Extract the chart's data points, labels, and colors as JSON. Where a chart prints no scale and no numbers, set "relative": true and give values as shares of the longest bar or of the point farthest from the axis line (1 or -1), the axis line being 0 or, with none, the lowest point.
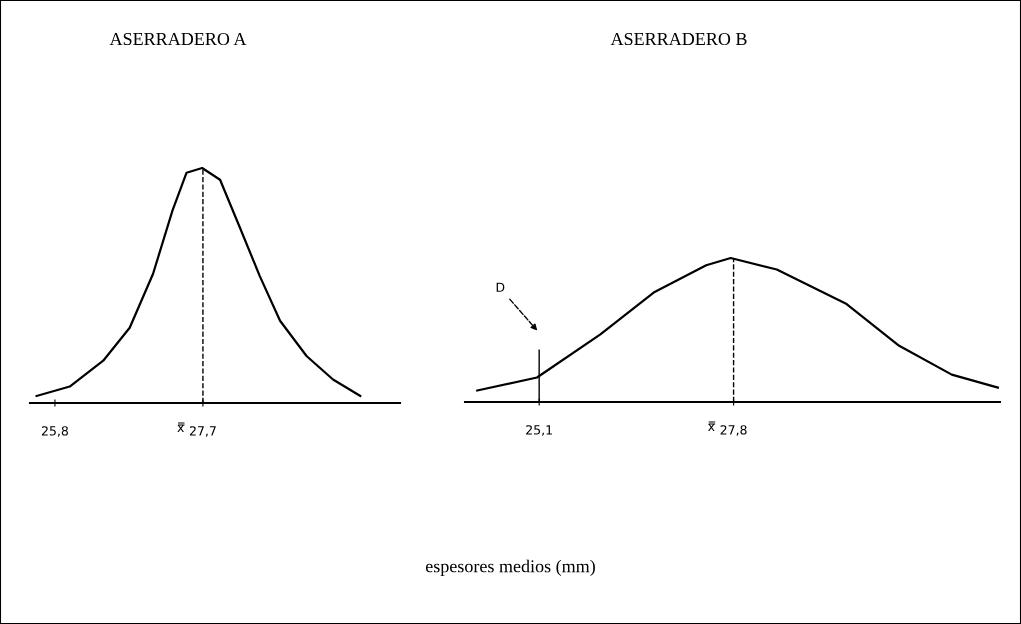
{
  "chart_data": [
    {
      "type": "line",
      "title": "ASERRADERO A",
      "relative": true,
      "xlabel": "espesores medios (mm)",
      "xlim": [
        25.48,
        30.23
      ],
      "xticks": [
        {
          "value": 25.8,
          "label": "25,8"
        },
        {
          "value": 27.7,
          "label": "27,7"
        }
      ],
      "series": [
        {
          "color": "#000000",
          "x": [
            25.565,
            25.99,
            26.42,
            26.76,
            27.06,
            27.31,
            27.49,
            27.69,
            27.92,
            28.17,
            28.43,
            28.69,
            29.03,
            29.37,
            29.72
          ],
          "values": [
            0.03,
            0.07,
            0.18,
            0.32,
            0.55,
            0.82,
            0.98,
            1,
            0.95,
            0.75,
            0.54,
            0.35,
            0.2,
            0.1,
            0.03
          ]
        }
      ],
      "ref_lines": [
        {
          "axis": "x",
          "value": 27.7,
          "label": "x̿",
          "line_style": "dashed",
          "color": "#000000"
        }
      ],
      "grid": false,
      "legend": false,
      "marker": "none",
      "line_style": "solid"
    },
    {
      "type": "line",
      "title": "ASERRADERO B",
      "relative": true,
      "xlim": [
        24.07,
        31.5
      ],
      "xticks": [
        {
          "value": 25.1,
          "label": "25,1"
        },
        {
          "value": 27.8,
          "label": "27,8"
        }
      ],
      "series": [
        {
          "color": "#000000",
          "x": [
            24.24,
            25.07,
            25.95,
            26.69,
            27.42,
            27.76,
            28.4,
            29.37,
            30.1,
            30.83,
            31.47
          ],
          "values": [
            0.08,
            0.17,
            0.47,
            0.76,
            0.95,
            1,
            0.92,
            0.68,
            0.39,
            0.19,
            0.1
          ]
        }
      ],
      "ref_lines": [
        {
          "axis": "x",
          "value": 25.1,
          "line_style": "solid",
          "color": "#000000"
        },
        {
          "axis": "x",
          "value": 27.8,
          "label": "x̿",
          "line_style": "dashed",
          "color": "#000000"
        }
      ],
      "annotations": [
        "D"
      ],
      "grid": false,
      "legend": false,
      "marker": "none",
      "line_style": "solid"
    }
  ]
}
